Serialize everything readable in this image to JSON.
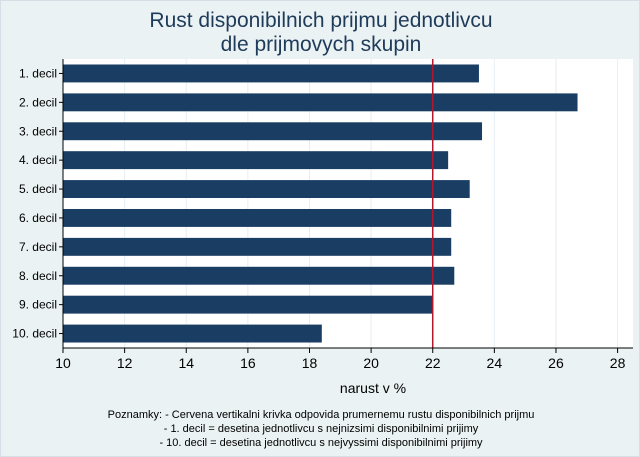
{
  "chart_data": {
    "type": "bar",
    "orientation": "horizontal",
    "title_line1": "Rust disponibilnich prijmu jednotlivcu",
    "title_line2": "dle prijmovych skupin",
    "xlabel": "narust v %",
    "ylabel": "",
    "categories": [
      "1. decil",
      "2. decil",
      "3. decil",
      "4. decil",
      "5. decil",
      "6. decil",
      "7. decil",
      "8. decil",
      "9. decil",
      "10. decil"
    ],
    "values": [
      23.5,
      26.7,
      23.6,
      22.5,
      23.2,
      22.6,
      22.6,
      22.7,
      22.0,
      18.4
    ],
    "xlim": [
      10,
      28.5
    ],
    "xticks": [
      10,
      12,
      14,
      16,
      18,
      20,
      22,
      24,
      26,
      28
    ],
    "reference_line": 22.0,
    "grid": true,
    "colors": {
      "bar": "#1a3e63",
      "reference_line": "#b2182b",
      "plot_background": "#ffffff",
      "outer_background": "#eaf2f3",
      "grid": "#e6eef2",
      "title": "#1f3b5a"
    }
  },
  "notes": {
    "line1": "Poznamky: - Cervena vertikalni krivka odpovida prumernemu rustu disponibilnich prijmu",
    "line2": "- 1. decil = desetina jednotlivcu s nejnizsimi disponibilnimi prijimy",
    "line3": "- 10. decil = desetina jednotlivcu s nejvyssimi disponibilnimi prijimy"
  }
}
